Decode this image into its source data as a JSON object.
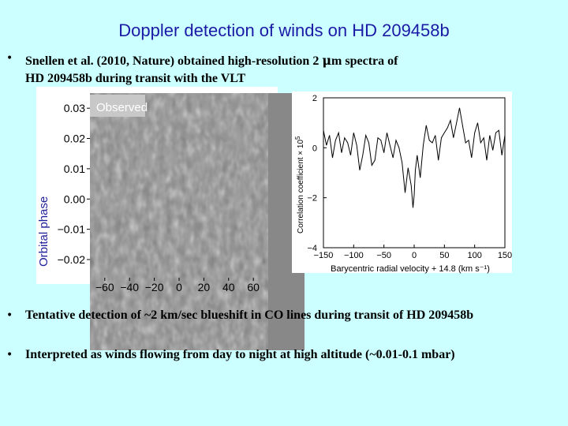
{
  "slide": {
    "title": "Doppler detection of winds on HD 209458b",
    "bullet_symbol": "•",
    "bullet1_line1_pre": "Snellen et al. (2010, Nature) obtained high-resolution 2 ",
    "bullet1_mu": "μ",
    "bullet1_line1_post": "m spectra of",
    "bullet1_line2": "HD 209458b during transit with the VLT",
    "bullet2": "Tentative detection of ~2 km/sec blueshift in CO lines during transit of HD 209458b",
    "bullet3": "Interpreted as winds flowing from day to night at high altitude (~0.01-0.1 mbar)"
  },
  "chart_data": [
    {
      "type": "heatmap",
      "annotation": "Observed",
      "ylabel": "Orbital phase",
      "yticks": [
        "0.03",
        "0.02",
        "0.01",
        "0.00",
        "−0.01",
        "−0.02"
      ],
      "ytick_values": [
        0.03,
        0.02,
        0.01,
        0.0,
        -0.01,
        -0.02
      ],
      "xticks": [
        "−60",
        "−40",
        "−20",
        "0",
        "20",
        "40",
        "60"
      ],
      "xtick_values": [
        -60,
        -40,
        -20,
        0,
        20,
        40,
        60
      ],
      "xlim": [
        -72,
        72
      ],
      "ylim": [
        -0.026,
        0.035
      ],
      "colormap": "grayscale noise"
    },
    {
      "type": "line",
      "xlabel": "Barycentric radial velocity + 14.8 (km s⁻¹)",
      "ylabel_base": "Correlation coefficient × 10",
      "ylabel_exp": "5",
      "xticks": [
        "−150",
        "−100",
        "−50",
        "0",
        "50",
        "100",
        "150"
      ],
      "xtick_values": [
        -150,
        -100,
        -50,
        0,
        50,
        100,
        150
      ],
      "yticks": [
        "2",
        "0",
        "−2",
        "−4"
      ],
      "ytick_values": [
        2,
        0,
        -2,
        -4
      ],
      "xlim": [
        -150,
        150
      ],
      "ylim": [
        -4,
        2
      ],
      "series": [
        {
          "x": [
            -150,
            -145,
            -140,
            -135,
            -130,
            -125,
            -120,
            -115,
            -110,
            -105,
            -100,
            -95,
            -90,
            -85,
            -80,
            -75,
            -70,
            -65,
            -60,
            -55,
            -50,
            -45,
            -40,
            -35,
            -30,
            -25,
            -20,
            -15,
            -10,
            -5,
            -2,
            0,
            2,
            5,
            10,
            15,
            20,
            25,
            30,
            35,
            40,
            45,
            50,
            55,
            60,
            65,
            70,
            75,
            80,
            85,
            90,
            95,
            100,
            105,
            110,
            115,
            120,
            125,
            130,
            135,
            140,
            145,
            150
          ],
          "y": [
            0.7,
            0.1,
            0.5,
            -0.4,
            0.3,
            0.6,
            -0.2,
            0.4,
            0.2,
            -0.3,
            0.6,
            0.1,
            -0.9,
            -0.3,
            0.5,
            0.2,
            -0.7,
            -0.5,
            0.4,
            0.3,
            -0.2,
            0.6,
            0.1,
            -0.4,
            0.3,
            0.0,
            -0.6,
            -1.8,
            -0.8,
            -1.5,
            -2.4,
            -1.9,
            -0.9,
            -0.3,
            -1.2,
            0.1,
            0.9,
            0.3,
            0.2,
            0.5,
            -0.5,
            0.4,
            0.6,
            0.8,
            1.1,
            0.4,
            1.0,
            1.6,
            0.9,
            0.2,
            0.3,
            -0.4,
            0.6,
            1.0,
            0.2,
            0.4,
            -0.5,
            0.5,
            -0.1,
            0.6,
            0.7,
            -0.3,
            0.5
          ]
        }
      ]
    }
  ]
}
